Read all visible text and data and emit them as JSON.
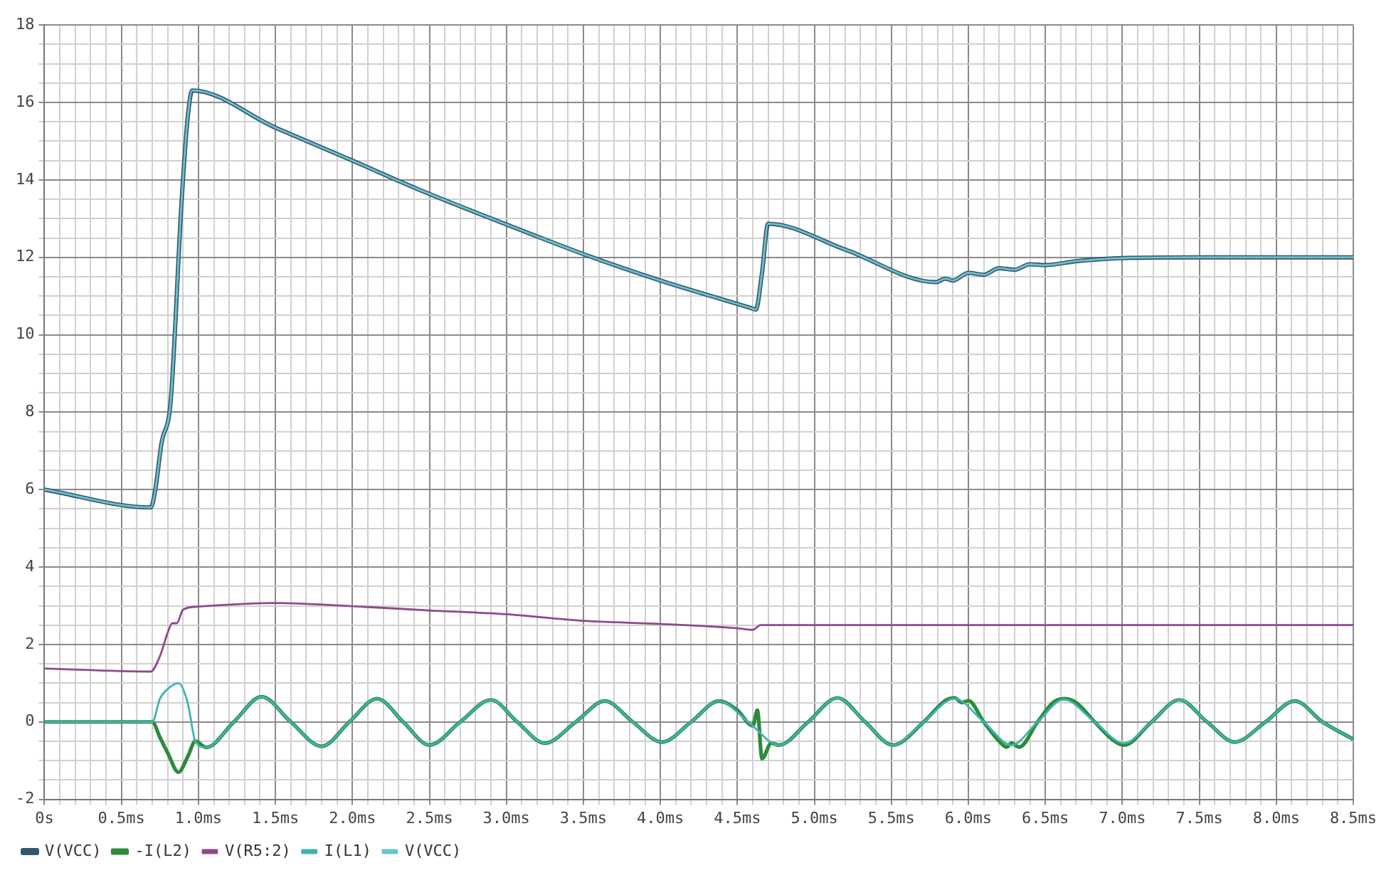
{
  "chart_data": {
    "type": "line",
    "xlim": [
      0,
      8.5
    ],
    "ylim": [
      -2,
      18
    ],
    "xticks": [
      {
        "value": 0,
        "label": "0s"
      },
      {
        "value": 0.1,
        "label": null
      },
      {
        "value": 0.2,
        "label": null
      },
      {
        "value": 0.3,
        "label": null
      },
      {
        "value": 0.4,
        "label": null
      },
      {
        "value": 0.5,
        "label": "0.5ms"
      },
      {
        "value": 0.6,
        "label": null
      },
      {
        "value": 0.7,
        "label": null
      },
      {
        "value": 0.8,
        "label": null
      },
      {
        "value": 0.9,
        "label": null
      },
      {
        "value": 1.0,
        "label": "1.0ms"
      },
      {
        "value": 1.1,
        "label": null
      },
      {
        "value": 1.2,
        "label": null
      },
      {
        "value": 1.3,
        "label": null
      },
      {
        "value": 1.4,
        "label": null
      },
      {
        "value": 1.5,
        "label": "1.5ms"
      },
      {
        "value": 1.6,
        "label": null
      },
      {
        "value": 1.7,
        "label": null
      },
      {
        "value": 1.8,
        "label": null
      },
      {
        "value": 1.9,
        "label": null
      },
      {
        "value": 2.0,
        "label": "2.0ms"
      },
      {
        "value": 2.1,
        "label": null
      },
      {
        "value": 2.2,
        "label": null
      },
      {
        "value": 2.3,
        "label": null
      },
      {
        "value": 2.4,
        "label": null
      },
      {
        "value": 2.5,
        "label": "2.5ms"
      },
      {
        "value": 2.6,
        "label": null
      },
      {
        "value": 2.7,
        "label": null
      },
      {
        "value": 2.8,
        "label": null
      },
      {
        "value": 2.9,
        "label": null
      },
      {
        "value": 3.0,
        "label": "3.0ms"
      },
      {
        "value": 3.1,
        "label": null
      },
      {
        "value": 3.2,
        "label": null
      },
      {
        "value": 3.3,
        "label": null
      },
      {
        "value": 3.4,
        "label": null
      },
      {
        "value": 3.5,
        "label": "3.5ms"
      },
      {
        "value": 3.6,
        "label": null
      },
      {
        "value": 3.7,
        "label": null
      },
      {
        "value": 3.8,
        "label": null
      },
      {
        "value": 3.9,
        "label": null
      },
      {
        "value": 4.0,
        "label": "4.0ms"
      },
      {
        "value": 4.1,
        "label": null
      },
      {
        "value": 4.2,
        "label": null
      },
      {
        "value": 4.3,
        "label": null
      },
      {
        "value": 4.4,
        "label": null
      },
      {
        "value": 4.5,
        "label": "4.5ms"
      },
      {
        "value": 4.6,
        "label": null
      },
      {
        "value": 4.7,
        "label": null
      },
      {
        "value": 4.8,
        "label": null
      },
      {
        "value": 4.9,
        "label": null
      },
      {
        "value": 5.0,
        "label": "5.0ms"
      },
      {
        "value": 5.1,
        "label": null
      },
      {
        "value": 5.2,
        "label": null
      },
      {
        "value": 5.3,
        "label": null
      },
      {
        "value": 5.4,
        "label": null
      },
      {
        "value": 5.5,
        "label": "5.5ms"
      },
      {
        "value": 5.6,
        "label": null
      },
      {
        "value": 5.7,
        "label": null
      },
      {
        "value": 5.8,
        "label": null
      },
      {
        "value": 5.9,
        "label": null
      },
      {
        "value": 6.0,
        "label": "6.0ms"
      },
      {
        "value": 6.1,
        "label": null
      },
      {
        "value": 6.2,
        "label": null
      },
      {
        "value": 6.3,
        "label": null
      },
      {
        "value": 6.4,
        "label": null
      },
      {
        "value": 6.5,
        "label": "6.5ms"
      },
      {
        "value": 6.6,
        "label": null
      },
      {
        "value": 6.7,
        "label": null
      },
      {
        "value": 6.8,
        "label": null
      },
      {
        "value": 6.9,
        "label": null
      },
      {
        "value": 7.0,
        "label": "7.0ms"
      },
      {
        "value": 7.1,
        "label": null
      },
      {
        "value": 7.2,
        "label": null
      },
      {
        "value": 7.3,
        "label": null
      },
      {
        "value": 7.4,
        "label": null
      },
      {
        "value": 7.5,
        "label": "7.5ms"
      },
      {
        "value": 7.6,
        "label": null
      },
      {
        "value": 7.7,
        "label": null
      },
      {
        "value": 7.8,
        "label": null
      },
      {
        "value": 7.9,
        "label": null
      },
      {
        "value": 8.0,
        "label": "8.0ms"
      },
      {
        "value": 8.1,
        "label": null
      },
      {
        "value": 8.2,
        "label": null
      },
      {
        "value": 8.3,
        "label": null
      },
      {
        "value": 8.4,
        "label": null
      },
      {
        "value": 8.5,
        "label": "8.5ms"
      }
    ],
    "yticks": [
      -2,
      {
        "value": -1.5,
        "label": null
      },
      {
        "value": -1,
        "label": null
      },
      {
        "value": -0.5,
        "label": null
      },
      0,
      {
        "value": 0.5,
        "label": null
      },
      {
        "value": 1,
        "label": null
      },
      {
        "value": 1.5,
        "label": null
      },
      2,
      {
        "value": 2.5,
        "label": null
      },
      {
        "value": 3,
        "label": null
      },
      {
        "value": 3.5,
        "label": null
      },
      4,
      {
        "value": 4.5,
        "label": null
      },
      {
        "value": 5,
        "label": null
      },
      {
        "value": 5.5,
        "label": null
      },
      6,
      {
        "value": 6.5,
        "label": null
      },
      {
        "value": 7,
        "label": null
      },
      {
        "value": 7.5,
        "label": null
      },
      8,
      {
        "value": 8.5,
        "label": null
      },
      {
        "value": 9,
        "label": null
      },
      {
        "value": 9.5,
        "label": null
      },
      10,
      {
        "value": 10.5,
        "label": null
      },
      {
        "value": 11,
        "label": null
      },
      {
        "value": 11.5,
        "label": null
      },
      12,
      {
        "value": 12.5,
        "label": null
      },
      {
        "value": 13,
        "label": null
      },
      {
        "value": 13.5,
        "label": null
      },
      14,
      {
        "value": 14.5,
        "label": null
      },
      {
        "value": 15,
        "label": null
      },
      {
        "value": 15.5,
        "label": null
      },
      16,
      {
        "value": 16.5,
        "label": null
      },
      {
        "value": 17,
        "label": null
      },
      {
        "value": 17.5,
        "label": null
      },
      18
    ],
    "grid": true,
    "legend": "bottom left",
    "series": [
      {
        "name": "V(VCC)",
        "color": "#34566e",
        "x": [
          0,
          0.69,
          0.72,
          0.76,
          0.82,
          0.89,
          0.93,
          0.96,
          1.5,
          2.0,
          2.42,
          3.0,
          3.53,
          4.0,
          4.58,
          4.62,
          4.66,
          4.7,
          5.2,
          5.79,
          5.85,
          5.9,
          6.0,
          6.1,
          6.2,
          6.3,
          6.4,
          6.5,
          6.7,
          7.0,
          7.5,
          8.0,
          8.5
        ],
        "values": [
          6,
          5.54,
          6.0,
          7.2,
          8.3,
          13.4,
          15.6,
          16.31,
          15.35,
          14.5,
          13.77,
          12.85,
          12.04,
          11.4,
          10.7,
          10.65,
          11.6,
          12.87,
          12.2,
          11.36,
          11.45,
          11.4,
          11.6,
          11.55,
          11.72,
          11.68,
          11.82,
          11.8,
          11.9,
          11.98,
          12.0,
          12.0,
          12.0
        ]
      },
      {
        "name": "-I(L2)",
        "color": "#2e8b3a",
        "x": [
          0,
          0.7,
          0.75,
          0.8,
          0.87,
          0.93,
          0.98,
          1.05,
          1.23,
          1.41,
          1.6,
          1.8,
          1.98,
          2.16,
          2.33,
          2.5,
          2.7,
          2.9,
          3.07,
          3.25,
          3.45,
          3.64,
          3.82,
          4.01,
          4.2,
          4.38,
          4.5,
          4.6,
          4.63,
          4.66,
          4.72,
          4.77,
          4.96,
          5.15,
          5.33,
          5.51,
          5.71,
          5.85,
          5.91,
          5.96,
          6.0,
          6.1,
          6.2,
          6.25,
          6.28,
          6.33,
          6.45,
          6.55,
          6.62,
          6.7,
          6.82,
          6.95,
          7.01,
          7.19,
          7.37,
          7.55,
          7.73,
          7.93,
          8.12,
          8.3,
          8.5
        ],
        "values": [
          0,
          0,
          -0.4,
          -0.8,
          -1.3,
          -0.9,
          -0.5,
          -0.66,
          0,
          0.65,
          0,
          -0.63,
          0,
          0.6,
          0,
          -0.6,
          0,
          0.57,
          0,
          -0.55,
          0,
          0.54,
          0,
          -0.52,
          0,
          0.54,
          0.3,
          -0.1,
          0.3,
          -0.95,
          -0.55,
          -0.6,
          0,
          0.62,
          0,
          -0.6,
          0,
          0.55,
          0.62,
          0.5,
          0.55,
          0,
          -0.5,
          -0.65,
          -0.55,
          -0.65,
          0,
          0.5,
          0.6,
          0.5,
          0,
          -0.5,
          -0.6,
          0,
          0.57,
          0,
          -0.52,
          0,
          0.54,
          0,
          -0.45
        ]
      },
      {
        "name": "V(R5:2)",
        "color": "#8e4a8e",
        "x": [
          0,
          0.69,
          0.75,
          0.8,
          0.83,
          0.86,
          0.9,
          1.0,
          1.5,
          2.0,
          2.5,
          3.0,
          3.5,
          4.0,
          4.5,
          4.6,
          4.65,
          4.7,
          8.5
        ],
        "values": [
          1.38,
          1.3,
          1.7,
          2.3,
          2.55,
          2.55,
          2.9,
          2.98,
          3.07,
          2.99,
          2.88,
          2.78,
          2.61,
          2.53,
          2.42,
          2.38,
          2.5,
          2.5,
          2.5
        ]
      },
      {
        "name": "I(L1)",
        "color": "#3fb3b3",
        "x": [
          0,
          0.7,
          0.75,
          0.8,
          0.87,
          0.93,
          0.98,
          1.05,
          1.23,
          1.41,
          1.6,
          1.8,
          1.98,
          2.16,
          2.33,
          2.5,
          2.7,
          2.9,
          3.07,
          3.25,
          3.45,
          3.64,
          3.82,
          4.01,
          4.2,
          4.38,
          4.57,
          4.77,
          4.96,
          5.15,
          5.33,
          5.51,
          5.71,
          5.91,
          6.1,
          6.28,
          6.45,
          6.62,
          6.82,
          7.01,
          7.19,
          7.37,
          7.55,
          7.73,
          7.93,
          8.12,
          8.3,
          8.5
        ],
        "values": [
          0,
          0,
          0.6,
          0.85,
          1.0,
          0.5,
          -0.5,
          -0.66,
          0,
          0.65,
          0,
          -0.63,
          0,
          0.6,
          0,
          -0.6,
          0,
          0.57,
          0,
          -0.55,
          0,
          0.54,
          0,
          -0.52,
          0,
          0.54,
          0,
          -0.6,
          0,
          0.62,
          0,
          -0.6,
          0,
          0.6,
          0,
          -0.6,
          0,
          0.58,
          0,
          -0.55,
          0,
          0.57,
          0,
          -0.52,
          0,
          0.54,
          0,
          -0.45
        ]
      },
      {
        "name": "V(VCC)",
        "color": "#6cc2cf",
        "x": [
          0,
          0.69,
          0.72,
          0.76,
          0.82,
          0.89,
          0.93,
          0.96,
          1.5,
          2.0,
          2.42,
          3.0,
          3.53,
          4.0,
          4.58,
          4.62,
          4.66,
          4.7,
          5.2,
          5.79,
          5.85,
          5.9,
          6.0,
          6.1,
          6.2,
          6.3,
          6.4,
          6.5,
          6.7,
          7.0,
          7.5,
          8.0,
          8.5
        ],
        "values": [
          6,
          5.54,
          6.0,
          7.2,
          8.3,
          13.4,
          15.6,
          16.31,
          15.35,
          14.5,
          13.77,
          12.85,
          12.04,
          11.4,
          10.7,
          10.65,
          11.6,
          12.87,
          12.2,
          11.36,
          11.45,
          11.4,
          11.6,
          11.55,
          11.72,
          11.68,
          11.82,
          11.8,
          11.9,
          11.98,
          12.0,
          12.0,
          12.0
        ]
      }
    ]
  }
}
